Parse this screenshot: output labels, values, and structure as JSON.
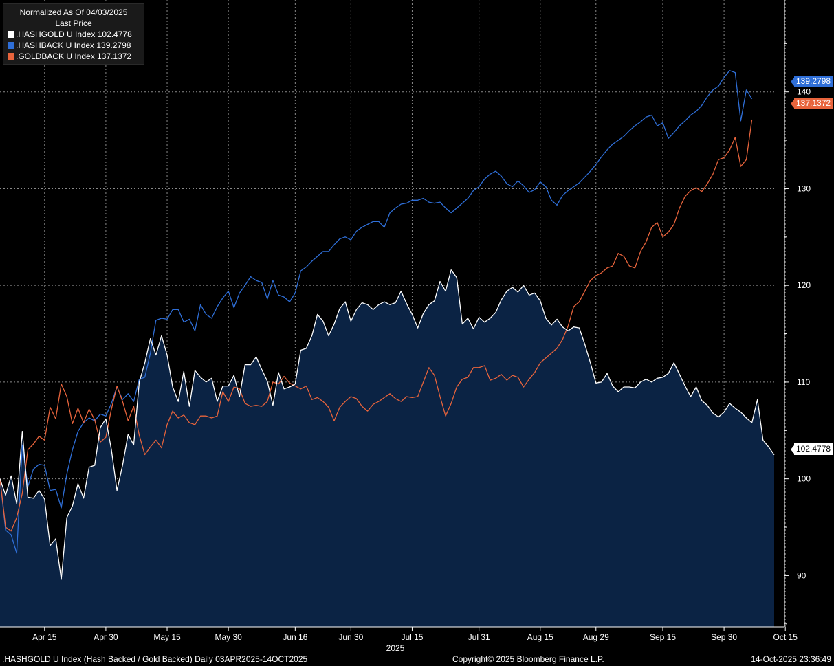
{
  "legend": {
    "line1": "Normalized As Of 04/03/2025",
    "line2": "Last Price",
    "items": [
      {
        "label": ".HASHGOLD U Index 102.4778",
        "color": "#ffffff"
      },
      {
        "label": ".HASHBACK U Index 139.2798",
        "color": "#2f6fd8"
      },
      {
        "label": ".GOLDBACK U Index 137.1372",
        "color": "#e8643c"
      }
    ]
  },
  "footer": {
    "left": ".HASHGOLD U Index (Hash Backed / Gold Backed) Daily 03APR2025-14OCT2025",
    "center": "Copyright© 2025 Bloomberg Finance L.P.",
    "right": "14-Oct-2025 23:36:49"
  },
  "last_labels": {
    "hashback": "139.2798",
    "goldback": "137.1372",
    "hashgold": "102.4778"
  },
  "colors": {
    "hashgold": "#ffffff",
    "hashback": "#2f6fd8",
    "goldback": "#e8643c",
    "area_fill": "#0b2344",
    "grid": "#8a8a8a"
  },
  "chart_data": {
    "type": "line",
    "title": "",
    "xlabel": "2025",
    "ylabel": "",
    "ylim": [
      84.7,
      149.5
    ],
    "yticks": [
      90,
      100,
      110,
      120,
      130,
      140
    ],
    "xtick_labels": [
      "Apr 15",
      "Apr 30",
      "May 15",
      "May 30",
      "Jun 16",
      "Jun 30",
      "Jul 15",
      "Jul 31",
      "Aug 15",
      "Aug 29",
      "Sep 15",
      "Sep 30",
      "Oct 15"
    ],
    "xtick_index": [
      8,
      19,
      30,
      41,
      53,
      63,
      74,
      86,
      97,
      107,
      119,
      130,
      141
    ],
    "grid": true,
    "legend_position": "top-left",
    "series": [
      {
        "name": ".HASHGOLD U Index",
        "key": "hashgold",
        "area": true,
        "values": [
          100,
          98.3,
          100.3,
          97.4,
          104.9,
          98.1,
          98.0,
          98.8,
          97.9,
          93.1,
          93.8,
          89.6,
          96.0,
          97.2,
          99.5,
          98.0,
          101.2,
          101.4,
          105.3,
          106.2,
          103.0,
          98.8,
          101.4,
          104.6,
          103.5,
          110.0,
          112.0,
          114.5,
          112.8,
          114.8,
          112.8,
          109.5,
          108.0,
          111.1,
          107.5,
          111.2,
          110.5,
          110.0,
          110.4,
          108.0,
          109.6,
          109.6,
          110.7,
          108.5,
          111.8,
          111.8,
          112.6,
          111.3,
          110.1,
          107.6,
          111.0,
          109.3,
          109.5,
          109.8,
          113.3,
          113.5,
          114.8,
          117.0,
          116.3,
          114.8,
          116.0,
          117.6,
          118.3,
          116.3,
          117.5,
          118.2,
          118.0,
          117.5,
          118.0,
          118.3,
          118.0,
          118.2,
          119.4,
          118.1,
          117.0,
          115.6,
          117.1,
          118.0,
          118.4,
          120.4,
          119.4,
          121.6,
          120.8,
          116.0,
          116.6,
          115.5,
          116.7,
          116.2,
          116.6,
          117.2,
          118.5,
          119.4,
          119.8,
          119.3,
          120.0,
          119.0,
          119.2,
          118.4,
          116.6,
          115.9,
          116.5,
          115.7,
          115.3,
          115.7,
          115.6,
          113.9,
          112.0,
          109.9,
          110.0,
          110.9,
          109.6,
          109.0,
          109.5,
          109.5,
          109.4,
          110.0,
          110.3,
          110.0,
          110.4,
          110.5,
          110.9,
          112.0,
          110.8,
          109.6,
          108.5,
          109.5,
          108.1,
          107.6,
          106.8,
          106.4,
          106.9,
          107.8,
          107.3,
          106.9,
          106.3,
          105.8,
          108.2,
          104.0,
          103.3,
          102.4778
        ]
      },
      {
        "name": ".HASHBACK U Index",
        "key": "hashback",
        "values": [
          100,
          94.7,
          94.2,
          92.3,
          103.5,
          99.2,
          101.0,
          101.5,
          101.4,
          98.8,
          98.9,
          97.0,
          100.5,
          103.0,
          104.9,
          105.8,
          106.3,
          106.0,
          106.7,
          106.5,
          107.8,
          109.5,
          108.2,
          108.8,
          108.0,
          110.3,
          110.5,
          113.0,
          116.4,
          116.6,
          116.5,
          117.5,
          117.5,
          116.2,
          116.5,
          115.3,
          118.0,
          117.0,
          116.6,
          117.8,
          118.7,
          119.4,
          117.7,
          119.2,
          120.0,
          120.9,
          120.5,
          120.3,
          118.6,
          120.5,
          119.0,
          118.8,
          118.3,
          119.2,
          121.5,
          121.9,
          122.5,
          123.0,
          123.5,
          123.5,
          124.2,
          124.8,
          125.0,
          124.7,
          125.6,
          126.0,
          126.3,
          126.6,
          126.6,
          126.0,
          127.5,
          128.0,
          128.4,
          128.5,
          128.8,
          128.8,
          129.0,
          128.6,
          128.5,
          128.6,
          128.0,
          127.5,
          128.0,
          128.5,
          129.0,
          129.8,
          130.2,
          131.0,
          131.5,
          131.8,
          131.3,
          130.5,
          130.2,
          130.8,
          130.3,
          129.6,
          129.9,
          130.7,
          130.2,
          128.8,
          128.3,
          129.3,
          129.8,
          130.2,
          130.6,
          131.2,
          131.8,
          132.5,
          133.3,
          134.0,
          134.6,
          135.0,
          135.4,
          136.0,
          136.5,
          136.9,
          137.4,
          137.6,
          136.5,
          136.8,
          135.2,
          135.8,
          136.5,
          137.0,
          137.6,
          138.0,
          138.6,
          139.5,
          140.2,
          140.6,
          141.5,
          142.2,
          142.0,
          137.0,
          140.2,
          139.2798
        ]
      },
      {
        "name": ".GOLDBACK U Index",
        "key": "goldback",
        "values": [
          100,
          95.0,
          94.6,
          96.0,
          98.5,
          103.0,
          103.6,
          104.4,
          104.0,
          107.4,
          106.2,
          109.8,
          108.5,
          105.7,
          107.3,
          105.8,
          107.2,
          106.1,
          103.8,
          104.3,
          107.2,
          109.6,
          108.0,
          106.0,
          107.5,
          104.5,
          102.5,
          103.3,
          104.0,
          103.2,
          105.6,
          107.0,
          106.3,
          106.6,
          105.8,
          105.6,
          106.5,
          106.5,
          106.3,
          106.5,
          109.0,
          108.0,
          109.5,
          109.3,
          107.8,
          107.5,
          107.6,
          107.5,
          108.0,
          110.0,
          109.8,
          110.6,
          109.9,
          109.6,
          109.3,
          109.6,
          108.2,
          108.4,
          108.0,
          107.4,
          106.0,
          107.4,
          108.0,
          108.5,
          108.3,
          107.5,
          107.0,
          107.7,
          108.0,
          108.4,
          108.8,
          108.3,
          108.0,
          108.5,
          108.4,
          108.5,
          110.0,
          111.5,
          110.7,
          108.5,
          106.5,
          107.8,
          109.5,
          110.3,
          110.5,
          111.5,
          111.5,
          111.7,
          110.2,
          110.4,
          110.8,
          110.2,
          110.7,
          110.5,
          109.5,
          110.3,
          111.0,
          112.0,
          112.5,
          113.0,
          113.5,
          114.4,
          115.8,
          117.8,
          118.3,
          119.4,
          120.5,
          121.0,
          121.3,
          121.8,
          122.0,
          123.3,
          123.0,
          122.0,
          121.8,
          123.5,
          124.5,
          126.0,
          126.5,
          125.0,
          125.5,
          126.3,
          128.0,
          129.2,
          129.8,
          130.1,
          129.7,
          130.5,
          131.5,
          133.0,
          133.2,
          134.0,
          135.3,
          132.3,
          133.0,
          137.1372
        ]
      }
    ]
  }
}
